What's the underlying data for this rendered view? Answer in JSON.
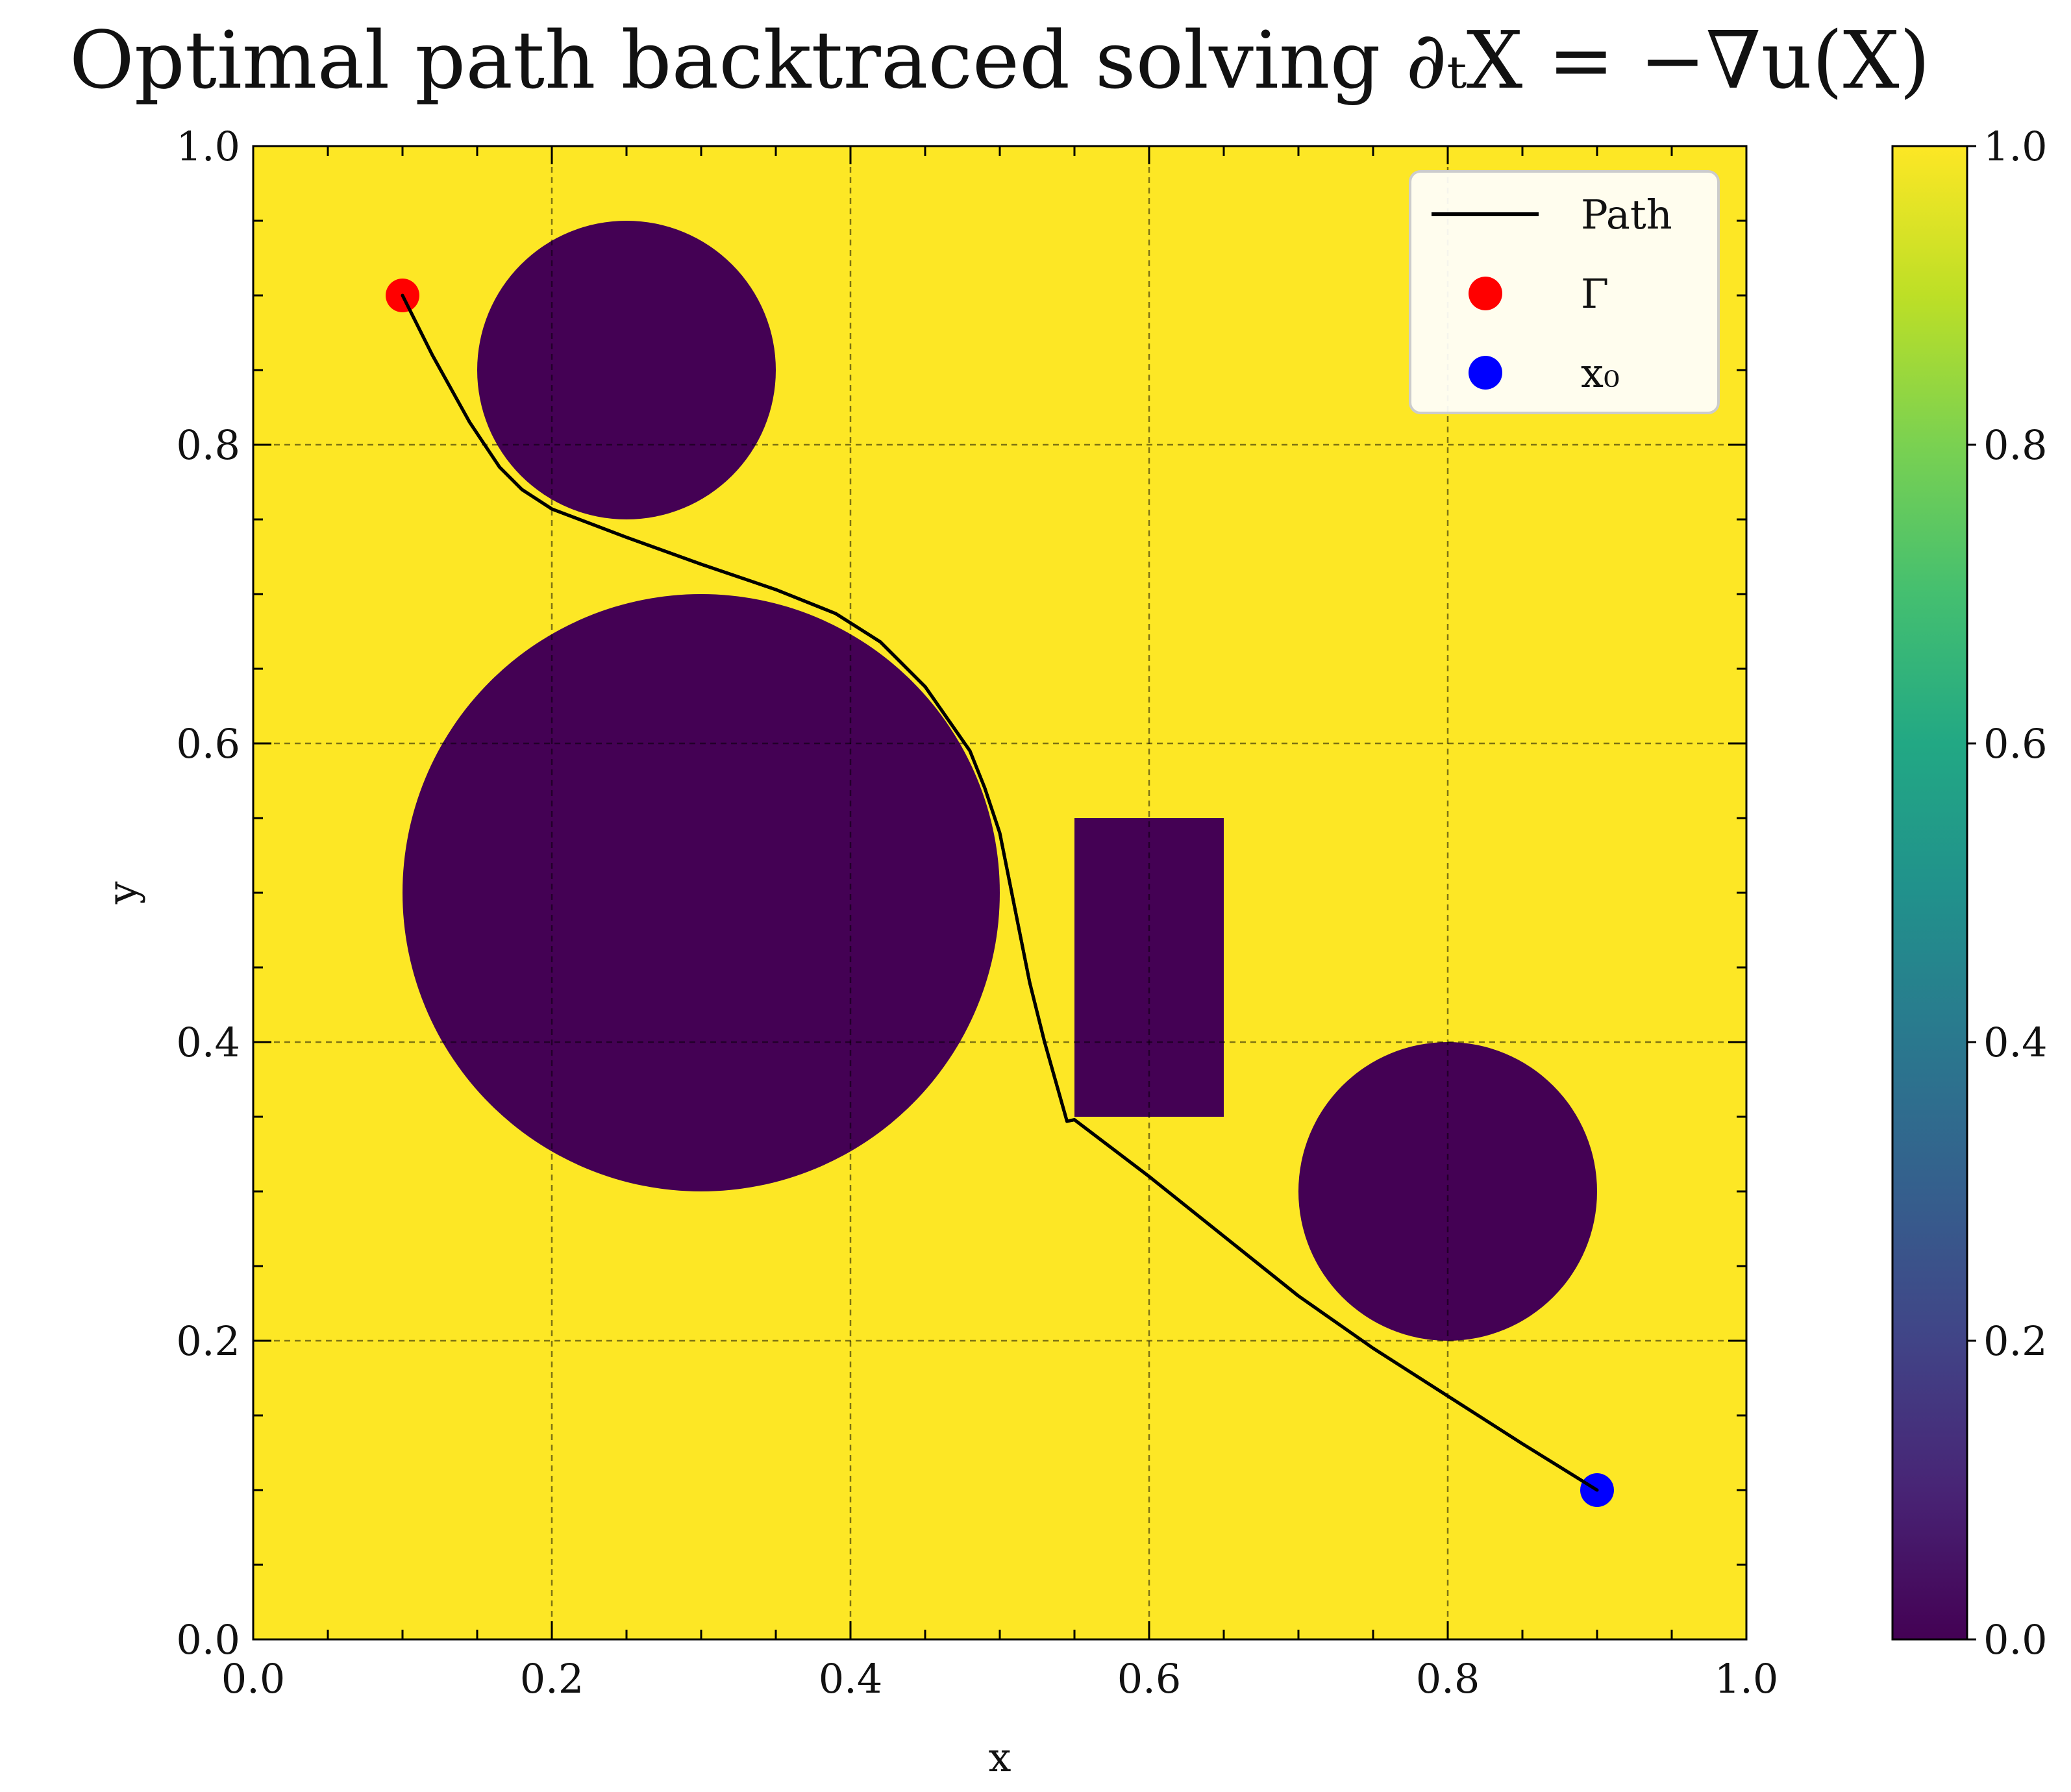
{
  "chart_data": {
    "type": "heatmap",
    "title": "Optimal path backtraced solving ∂ₜX = −∇u(X)",
    "xlabel": "x",
    "ylabel": "y",
    "xlim": [
      0.0,
      1.0
    ],
    "ylim": [
      0.0,
      1.0
    ],
    "x_ticks": [
      "0.0",
      "0.2",
      "0.4",
      "0.6",
      "0.8",
      "1.0"
    ],
    "y_ticks": [
      "0.0",
      "0.2",
      "0.4",
      "0.6",
      "0.8",
      "1.0"
    ],
    "grid": true,
    "legend_position": "top-right",
    "colormap": "viridis",
    "colorbar": {
      "range": [
        0.0,
        1.0
      ],
      "ticks": [
        "0.0",
        "0.2",
        "0.4",
        "0.6",
        "0.8",
        "1.0"
      ]
    },
    "field": {
      "background_value": 1.0,
      "obstacle_value": 0.0,
      "obstacles": [
        {
          "shape": "circle",
          "cx": 0.25,
          "cy": 0.85,
          "r": 0.1
        },
        {
          "shape": "circle",
          "cx": 0.3,
          "cy": 0.5,
          "r": 0.2
        },
        {
          "shape": "rectangle",
          "x0": 0.55,
          "x1": 0.65,
          "y0": 0.35,
          "y1": 0.55
        },
        {
          "shape": "circle",
          "cx": 0.8,
          "cy": 0.3,
          "r": 0.1
        }
      ]
    },
    "series": [
      {
        "name": "Path",
        "kind": "line",
        "color": "#000000",
        "x": [
          0.1,
          0.12,
          0.145,
          0.165,
          0.18,
          0.2,
          0.25,
          0.3,
          0.35,
          0.39,
          0.42,
          0.45,
          0.48,
          0.49,
          0.5,
          0.51,
          0.52,
          0.53,
          0.545,
          0.55,
          0.6,
          0.7,
          0.75,
          0.8,
          0.85,
          0.9
        ],
        "y": [
          0.9,
          0.86,
          0.815,
          0.785,
          0.77,
          0.757,
          0.738,
          0.72,
          0.703,
          0.687,
          0.668,
          0.638,
          0.595,
          0.57,
          0.54,
          0.49,
          0.44,
          0.4,
          0.347,
          0.348,
          0.31,
          0.23,
          0.195,
          0.163,
          0.131,
          0.1
        ]
      },
      {
        "name": "Γ",
        "kind": "point",
        "color": "#ff0000",
        "x": [
          0.1
        ],
        "y": [
          0.9
        ]
      },
      {
        "name": "x₀",
        "kind": "point",
        "color": "#0000ff",
        "x": [
          0.9
        ],
        "y": [
          0.1
        ]
      }
    ],
    "colors": {
      "field_high": "#fde725",
      "field_low": "#440154"
    }
  }
}
